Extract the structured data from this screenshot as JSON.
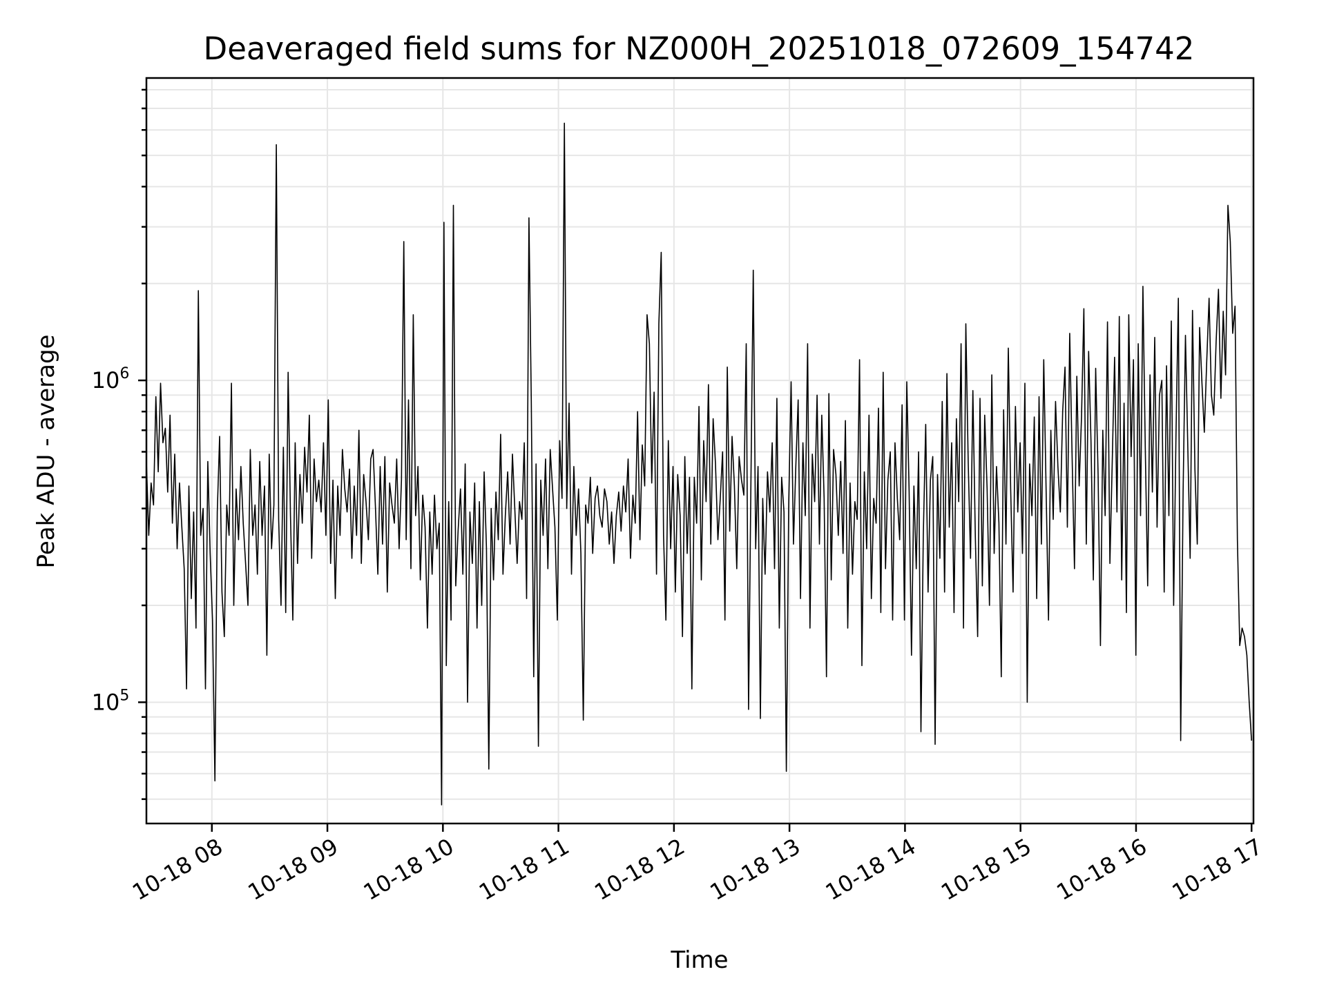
{
  "chart_data": {
    "type": "line",
    "title": "Deaveraged field sums for NZ000H_20251018_072609_154742",
    "xlabel": "Time",
    "ylabel": "Peak ADU - average",
    "yscale": "log",
    "grid": true,
    "line_color": "#000000",
    "xlim": [
      "2025-10-18 07:26",
      "2025-10-18 17:01"
    ],
    "ylim": [
      42000,
      8700000
    ],
    "x_ticks": [
      "10-18 08",
      "10-18 09",
      "10-18 10",
      "10-18 11",
      "10-18 12",
      "10-18 13",
      "10-18 14",
      "10-18 15",
      "10-18 16",
      "10-18 17"
    ],
    "y_ticks": [
      {
        "base": "10",
        "exp": "5",
        "value": 100000
      },
      {
        "base": "10",
        "exp": "6",
        "value": 1000000
      }
    ],
    "series": [
      {
        "x_start": "2025-10-18 07:26",
        "x_end": "2025-10-18 17:00",
        "values": [
          560000,
          330000,
          480000,
          410000,
          890000,
          520000,
          980000,
          640000,
          710000,
          450000,
          780000,
          360000,
          590000,
          300000,
          480000,
          350000,
          260000,
          110000,
          470000,
          210000,
          390000,
          170000,
          1900000,
          330000,
          400000,
          110000,
          560000,
          290000,
          180000,
          57000,
          390000,
          670000,
          220000,
          160000,
          410000,
          330000,
          980000,
          200000,
          460000,
          320000,
          540000,
          360000,
          270000,
          200000,
          610000,
          330000,
          410000,
          250000,
          560000,
          330000,
          470000,
          140000,
          590000,
          300000,
          410000,
          5400000,
          370000,
          200000,
          620000,
          190000,
          1060000,
          380000,
          180000,
          640000,
          270000,
          510000,
          360000,
          620000,
          450000,
          780000,
          280000,
          570000,
          420000,
          490000,
          390000,
          640000,
          330000,
          870000,
          270000,
          490000,
          210000,
          470000,
          330000,
          610000,
          460000,
          390000,
          530000,
          280000,
          470000,
          330000,
          700000,
          270000,
          510000,
          420000,
          320000,
          570000,
          610000,
          400000,
          250000,
          540000,
          310000,
          580000,
          220000,
          480000,
          410000,
          360000,
          570000,
          300000,
          490000,
          2700000,
          320000,
          870000,
          260000,
          1600000,
          380000,
          540000,
          240000,
          440000,
          350000,
          170000,
          390000,
          250000,
          440000,
          300000,
          360000,
          48000,
          3100000,
          130000,
          420000,
          180000,
          3500000,
          230000,
          340000,
          460000,
          250000,
          550000,
          100000,
          390000,
          270000,
          480000,
          170000,
          420000,
          200000,
          520000,
          300000,
          62000,
          400000,
          240000,
          450000,
          320000,
          680000,
          250000,
          380000,
          520000,
          310000,
          590000,
          400000,
          270000,
          420000,
          370000,
          640000,
          210000,
          3200000,
          860000,
          120000,
          550000,
          73000,
          490000,
          330000,
          570000,
          260000,
          610000,
          460000,
          350000,
          180000,
          650000,
          430000,
          6300000,
          400000,
          850000,
          250000,
          540000,
          330000,
          460000,
          290000,
          88000,
          410000,
          360000,
          500000,
          290000,
          430000,
          470000,
          380000,
          350000,
          460000,
          420000,
          310000,
          390000,
          270000,
          380000,
          450000,
          340000,
          470000,
          390000,
          570000,
          280000,
          440000,
          360000,
          800000,
          320000,
          630000,
          470000,
          1600000,
          1300000,
          480000,
          920000,
          250000,
          1500000,
          2500000,
          330000,
          180000,
          650000,
          300000,
          540000,
          220000,
          510000,
          380000,
          160000,
          580000,
          290000,
          500000,
          110000,
          500000,
          360000,
          830000,
          240000,
          650000,
          420000,
          970000,
          310000,
          760000,
          550000,
          320000,
          430000,
          600000,
          180000,
          1100000,
          340000,
          670000,
          470000,
          260000,
          580000,
          490000,
          440000,
          1300000,
          95000,
          480000,
          2200000,
          300000,
          540000,
          89000,
          430000,
          250000,
          520000,
          390000,
          640000,
          260000,
          880000,
          170000,
          500000,
          390000,
          61000,
          410000,
          990000,
          310000,
          540000,
          870000,
          210000,
          640000,
          380000,
          1300000,
          170000,
          590000,
          420000,
          900000,
          310000,
          780000,
          430000,
          120000,
          910000,
          240000,
          610000,
          510000,
          330000,
          560000,
          290000,
          750000,
          170000,
          480000,
          250000,
          420000,
          370000,
          1160000,
          130000,
          520000,
          300000,
          780000,
          210000,
          430000,
          360000,
          820000,
          190000,
          1060000,
          260000,
          490000,
          600000,
          180000,
          640000,
          430000,
          320000,
          840000,
          180000,
          990000,
          450000,
          140000,
          470000,
          260000,
          600000,
          81000,
          330000,
          730000,
          220000,
          490000,
          580000,
          74000,
          510000,
          280000,
          860000,
          220000,
          1050000,
          350000,
          640000,
          190000,
          760000,
          420000,
          1300000,
          170000,
          1500000,
          560000,
          280000,
          930000,
          330000,
          160000,
          880000,
          230000,
          780000,
          460000,
          200000,
          1040000,
          290000,
          540000,
          360000,
          120000,
          810000,
          310000,
          1260000,
          460000,
          220000,
          830000,
          390000,
          640000,
          290000,
          980000,
          100000,
          550000,
          380000,
          770000,
          210000,
          890000,
          310000,
          1160000,
          460000,
          180000,
          700000,
          370000,
          860000,
          540000,
          390000,
          800000,
          1100000,
          350000,
          1400000,
          590000,
          260000,
          1030000,
          470000,
          770000,
          1670000,
          310000,
          1230000,
          650000,
          240000,
          1090000,
          510000,
          150000,
          700000,
          380000,
          1520000,
          270000,
          560000,
          1180000,
          390000,
          1580000,
          240000,
          850000,
          190000,
          1600000,
          580000,
          1160000,
          140000,
          1300000,
          380000,
          1960000,
          620000,
          230000,
          1040000,
          450000,
          1360000,
          350000,
          900000,
          1000000,
          220000,
          1110000,
          380000,
          1530000,
          200000,
          680000,
          1800000,
          76000,
          450000,
          1380000,
          620000,
          280000,
          1650000,
          530000,
          310000,
          1460000,
          980000,
          690000,
          1130000,
          1800000,
          900000,
          780000,
          1320000,
          1920000,
          880000,
          1640000,
          1040000,
          3500000,
          2700000,
          1400000,
          1700000,
          320000,
          150000,
          170000,
          160000,
          140000,
          100000,
          76000
        ]
      }
    ]
  }
}
